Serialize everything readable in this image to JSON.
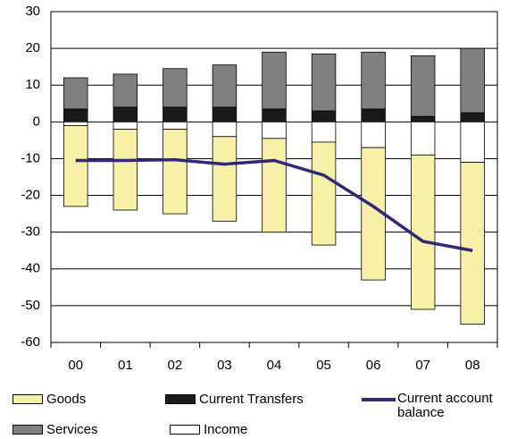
{
  "chart_data": {
    "type": "bar",
    "categories": [
      "00",
      "01",
      "02",
      "03",
      "04",
      "05",
      "06",
      "07",
      "08"
    ],
    "series": [
      {
        "name": "Current Transfers",
        "color": "#1a1a1a",
        "values": [
          3.5,
          4,
          4,
          4,
          3.5,
          3,
          3.5,
          1.5,
          2.5
        ]
      },
      {
        "name": "Income",
        "color": "#ffffff",
        "values": [
          -1,
          -2,
          -2,
          -4,
          -4.5,
          -5.5,
          -7,
          -9,
          -11
        ]
      },
      {
        "name": "Services",
        "color": "#808080",
        "values": [
          8.5,
          9,
          10.5,
          11.5,
          15.5,
          15.5,
          15.5,
          16.5,
          17.5
        ]
      },
      {
        "name": "Goods",
        "color": "#f7f0a8",
        "values": [
          -22,
          -22,
          -23,
          -23,
          -25.5,
          -28,
          -36,
          -42,
          -44
        ]
      },
      {
        "name": "Current account balance",
        "type": "line",
        "color": "#2e2a78",
        "values": [
          -10.5,
          -10.5,
          -10.3,
          -11.5,
          -10.5,
          -14.5,
          -23,
          -32.5,
          -35
        ]
      }
    ],
    "ylim": [
      -60,
      30
    ],
    "yticks": [
      -60,
      -50,
      -40,
      -30,
      -20,
      -10,
      0,
      10,
      20,
      30
    ],
    "grid": true
  }
}
